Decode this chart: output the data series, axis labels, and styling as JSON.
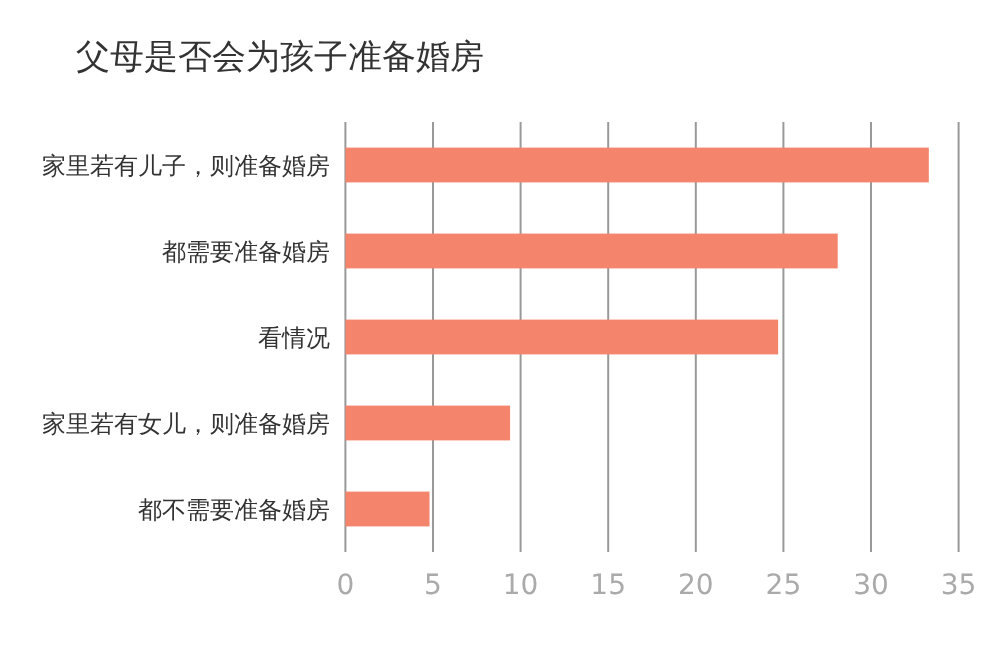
{
  "chart_data": {
    "type": "bar",
    "orientation": "horizontal",
    "title": "父母是否会为孩子准备婚房",
    "categories": [
      "家里若有儿子，则准备婚房",
      "都需要准备婚房",
      "看情况",
      "家里若有女儿，则准备婚房",
      "都不需要准备婚房"
    ],
    "values": [
      33.3,
      28.1,
      24.7,
      9.4,
      4.8
    ],
    "color": "#f4846c",
    "xlim": [
      0,
      35
    ],
    "xticks": [
      0,
      5,
      10,
      15,
      20,
      25,
      30,
      35
    ],
    "grid": "x"
  }
}
